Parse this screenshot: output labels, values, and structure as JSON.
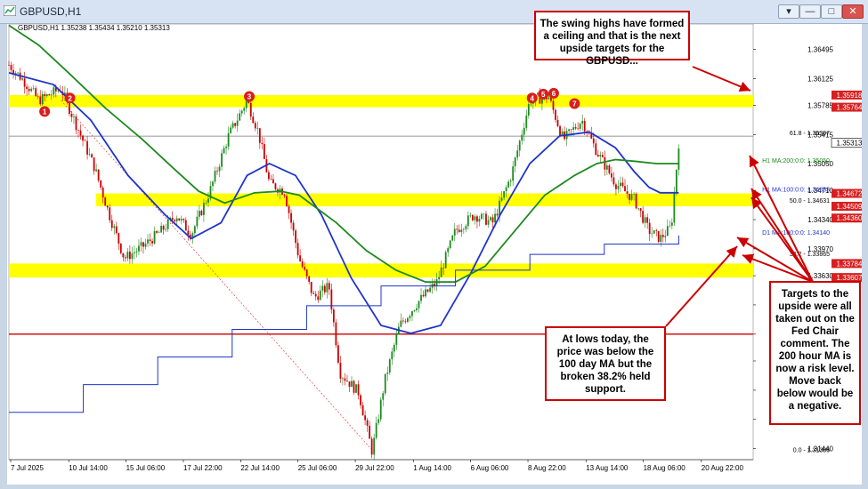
{
  "window": {
    "title": "GBPUSD,H1",
    "buttons": [
      "▾",
      "—",
      "□",
      "✕"
    ]
  },
  "chart_header": "GBPUSD,H1  1.35238 1.35434 1.35210 1.35313",
  "annotations": {
    "top": "The swing highs have formed a ceiling and that is the next upside targets for the GBPUSD...",
    "mid": "At lows today, the price was below the 100 day MA but the broken 38.2% held support.",
    "right": "Targets to the upside were all taken out on the Fed Chair comment. The 200 hour MA is now a risk level. Move back below would be a negative."
  },
  "colors": {
    "ma100h": "#1f35c9",
    "ma200h": "#1e8a1e",
    "zone": "#ffff00",
    "red": "#cc0000",
    "bull": "#1e8a1e",
    "bear": "#cc0000"
  },
  "chart_data": {
    "type": "candlestick",
    "symbol": "GBPUSD",
    "timeframe": "H1",
    "ohlc_last": {
      "open": 1.35238,
      "high": 1.35434,
      "low": 1.3521,
      "close": 1.35313
    },
    "ylim": [
      1.313,
      1.3675
    ],
    "x_ticks": [
      "7 Jul 2025",
      "10 Jul 14:00",
      "15 Jul 06:00",
      "17 Jul 22:00",
      "22 Jul 14:00",
      "25 Jul 06:00",
      "29 Jul 22:00",
      "1 Aug 14:00",
      "6 Aug 06:00",
      "8 Aug 22:00",
      "13 Aug 14:00",
      "18 Aug 06:00",
      "20 Aug 22:00"
    ],
    "y_ticks": [
      1.36495,
      1.36125,
      1.35785,
      1.35415,
      1.3505,
      1.3471,
      1.3434,
      1.3397,
      1.3363,
      1.3326,
      1.3289,
      1.3255,
      1.3218,
      1.3181,
      1.3144
    ],
    "price_labels": [
      {
        "value": 1.35918,
        "text": "1.35918"
      },
      {
        "value": 1.35764,
        "text": "1.35764"
      },
      {
        "value": 1.35313,
        "text": "1.35313"
      },
      {
        "value": 1.34672,
        "text": "1.34672"
      },
      {
        "value": 1.34509,
        "text": "1.34509"
      },
      {
        "value": 1.3436,
        "text": "1.34360"
      },
      {
        "value": 1.33784,
        "text": "1.33784"
      },
      {
        "value": 1.33607,
        "text": "1.33607"
      }
    ],
    "indicator_labels": [
      {
        "value": 1.35397,
        "text": "61.8 - 1.35397"
      },
      {
        "value": 1.3505,
        "text": "H1 MA:200:0:0: 1.35050"
      },
      {
        "value": 1.34683,
        "text": "H1 MA:100:0:0: 1.34683"
      },
      {
        "value": 1.34631,
        "text": "50.0 - 1.34631"
      },
      {
        "value": 1.3414,
        "text": "D1 MA:100:0:0: 1.34140"
      },
      {
        "value": 1.33865,
        "text": "38.2 - 1.33865"
      },
      {
        "value": 1.31386,
        "text": "0.0 - 1.31386"
      }
    ],
    "zones": [
      {
        "from": 1.35764,
        "to": 1.35918
      },
      {
        "from": 1.34509,
        "to": 1.34672
      },
      {
        "from": 1.33607,
        "to": 1.33784
      }
    ],
    "horizontal_lines": [
      1.35397,
      1.3289
    ],
    "swing_markers": [
      {
        "label": "1",
        "t": 0.048,
        "price": 1.3571
      },
      {
        "label": "2",
        "t": 0.082,
        "price": 1.3588
      },
      {
        "label": "3",
        "t": 0.323,
        "price": 1.359
      },
      {
        "label": "4",
        "t": 0.703,
        "price": 1.3588
      },
      {
        "label": "5",
        "t": 0.718,
        "price": 1.3593
      },
      {
        "label": "6",
        "t": 0.732,
        "price": 1.3594
      },
      {
        "label": "7",
        "t": 0.76,
        "price": 1.3581
      }
    ],
    "close_path": [
      [
        0.0,
        1.363
      ],
      [
        0.02,
        1.361
      ],
      [
        0.04,
        1.3585
      ],
      [
        0.07,
        1.36
      ],
      [
        0.09,
        1.3555
      ],
      [
        0.115,
        1.35
      ],
      [
        0.135,
        1.344
      ],
      [
        0.155,
        1.3385
      ],
      [
        0.18,
        1.34
      ],
      [
        0.205,
        1.342
      ],
      [
        0.225,
        1.344
      ],
      [
        0.245,
        1.3415
      ],
      [
        0.27,
        1.347
      ],
      [
        0.295,
        1.354
      ],
      [
        0.32,
        1.3585
      ],
      [
        0.335,
        1.3545
      ],
      [
        0.35,
        1.348
      ],
      [
        0.37,
        1.347
      ],
      [
        0.39,
        1.3385
      ],
      [
        0.41,
        1.3335
      ],
      [
        0.43,
        1.335
      ],
      [
        0.445,
        1.324
      ],
      [
        0.47,
        1.3215
      ],
      [
        0.488,
        1.314
      ],
      [
        0.505,
        1.323
      ],
      [
        0.525,
        1.33
      ],
      [
        0.55,
        1.333
      ],
      [
        0.575,
        1.3355
      ],
      [
        0.6,
        1.342
      ],
      [
        0.625,
        1.344
      ],
      [
        0.65,
        1.343
      ],
      [
        0.675,
        1.349
      ],
      [
        0.7,
        1.3585
      ],
      [
        0.725,
        1.359
      ],
      [
        0.745,
        1.3535
      ],
      [
        0.77,
        1.356
      ],
      [
        0.79,
        1.352
      ],
      [
        0.815,
        1.348
      ],
      [
        0.84,
        1.346
      ],
      [
        0.86,
        1.342
      ],
      [
        0.875,
        1.341
      ],
      [
        0.89,
        1.3425
      ],
      [
        0.9,
        1.3531
      ]
    ],
    "series": [
      {
        "name": "H1 MA:100:0:0",
        "points": [
          [
            0.0,
            1.362
          ],
          [
            0.06,
            1.3605
          ],
          [
            0.11,
            1.356
          ],
          [
            0.16,
            1.349
          ],
          [
            0.21,
            1.344
          ],
          [
            0.245,
            1.341
          ],
          [
            0.285,
            1.343
          ],
          [
            0.32,
            1.349
          ],
          [
            0.35,
            1.3505
          ],
          [
            0.385,
            1.349
          ],
          [
            0.42,
            1.344
          ],
          [
            0.46,
            1.336
          ],
          [
            0.5,
            1.33
          ],
          [
            0.54,
            1.329
          ],
          [
            0.58,
            1.33
          ],
          [
            0.62,
            1.3365
          ],
          [
            0.66,
            1.344
          ],
          [
            0.7,
            1.3505
          ],
          [
            0.74,
            1.354
          ],
          [
            0.78,
            1.3545
          ],
          [
            0.815,
            1.3525
          ],
          [
            0.84,
            1.3495
          ],
          [
            0.86,
            1.3475
          ],
          [
            0.875,
            1.3468
          ],
          [
            0.9,
            1.3468
          ]
        ]
      },
      {
        "name": "H1 MA:200:0:0",
        "points": [
          [
            0.0,
            1.368
          ],
          [
            0.04,
            1.3655
          ],
          [
            0.08,
            1.362
          ],
          [
            0.13,
            1.3575
          ],
          [
            0.18,
            1.3535
          ],
          [
            0.22,
            1.35
          ],
          [
            0.255,
            1.347
          ],
          [
            0.29,
            1.3455
          ],
          [
            0.33,
            1.3468
          ],
          [
            0.365,
            1.347
          ],
          [
            0.39,
            1.3465
          ],
          [
            0.44,
            1.343
          ],
          [
            0.48,
            1.3395
          ],
          [
            0.52,
            1.337
          ],
          [
            0.56,
            1.3355
          ],
          [
            0.6,
            1.3355
          ],
          [
            0.64,
            1.3375
          ],
          [
            0.68,
            1.342
          ],
          [
            0.72,
            1.3465
          ],
          [
            0.76,
            1.349
          ],
          [
            0.79,
            1.3505
          ],
          [
            0.815,
            1.351
          ],
          [
            0.84,
            1.3508
          ],
          [
            0.87,
            1.3505
          ],
          [
            0.9,
            1.3505
          ]
        ]
      },
      {
        "name": "D1 MA:100:0:0",
        "points": [
          [
            0.0,
            1.319
          ],
          [
            0.1,
            1.3225
          ],
          [
            0.2,
            1.326
          ],
          [
            0.3,
            1.3295
          ],
          [
            0.4,
            1.3325
          ],
          [
            0.5,
            1.335
          ],
          [
            0.6,
            1.337
          ],
          [
            0.7,
            1.339
          ],
          [
            0.8,
            1.3403
          ],
          [
            0.9,
            1.3414
          ]
        ]
      }
    ],
    "legend": "top-right labels"
  }
}
